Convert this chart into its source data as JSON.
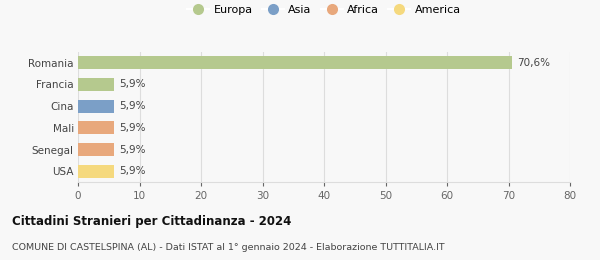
{
  "categories": [
    "Romania",
    "Francia",
    "Cina",
    "Mali",
    "Senegal",
    "USA"
  ],
  "values": [
    70.6,
    5.9,
    5.9,
    5.9,
    5.9,
    5.9
  ],
  "bar_colors": [
    "#b5c98e",
    "#b5c98e",
    "#7b9fc7",
    "#e8a87c",
    "#e8a87c",
    "#f5d97e"
  ],
  "labels": [
    "70,6%",
    "5,9%",
    "5,9%",
    "5,9%",
    "5,9%",
    "5,9%"
  ],
  "legend": [
    {
      "label": "Europa",
      "color": "#b5c98e"
    },
    {
      "label": "Asia",
      "color": "#7b9fc7"
    },
    {
      "label": "Africa",
      "color": "#e8a87c"
    },
    {
      "label": "America",
      "color": "#f5d97e"
    }
  ],
  "xlim": [
    0,
    80
  ],
  "xticks": [
    0,
    10,
    20,
    30,
    40,
    50,
    60,
    70,
    80
  ],
  "title": "Cittadini Stranieri per Cittadinanza - 2024",
  "subtitle": "COMUNE DI CASTELSPINA (AL) - Dati ISTAT al 1° gennaio 2024 - Elaborazione TUTTITALIA.IT",
  "background_color": "#f8f8f8",
  "grid_color": "#dddddd",
  "bar_height": 0.6
}
